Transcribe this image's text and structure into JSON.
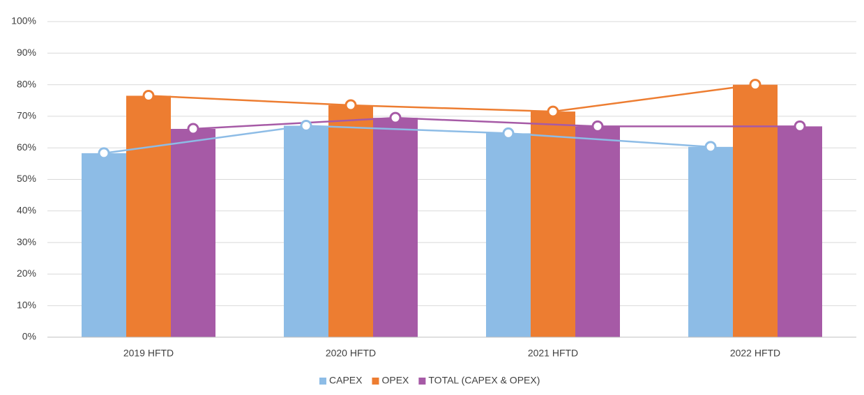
{
  "chart_data": {
    "type": "bar",
    "categories": [
      "2019 HFTD",
      "2020 HFTD",
      "2021 HFTD",
      "2022 HFTD"
    ],
    "series": [
      {
        "name": "CAPEX",
        "color": "#8dbce6",
        "values": [
          58.3,
          67,
          64.6,
          60.3
        ]
      },
      {
        "name": "OPEX",
        "color": "#ed7d31",
        "values": [
          76.5,
          73.5,
          71.5,
          80
        ]
      },
      {
        "name": "TOTAL (CAPEX & OPEX)",
        "color": "#a65aa6",
        "values": [
          66,
          69.5,
          66.8,
          66.8
        ]
      }
    ],
    "ylim": [
      0,
      100
    ],
    "yticks": [
      {
        "value": 0,
        "label": "0%"
      },
      {
        "value": 10,
        "label": "10%"
      },
      {
        "value": 20,
        "label": "20%"
      },
      {
        "value": 30,
        "label": "30%"
      },
      {
        "value": 40,
        "label": "40%"
      },
      {
        "value": 50,
        "label": "50%"
      },
      {
        "value": 60,
        "label": "60%"
      },
      {
        "value": 70,
        "label": "70%"
      },
      {
        "value": 80,
        "label": "80%"
      },
      {
        "value": 90,
        "label": "90%"
      },
      {
        "value": 100,
        "label": "100%"
      }
    ],
    "grid": true,
    "legend": "bottom"
  }
}
